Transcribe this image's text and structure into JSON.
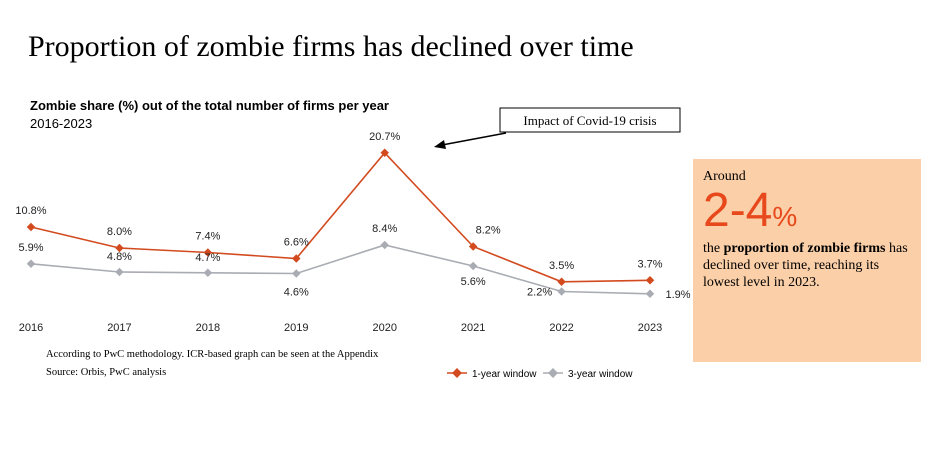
{
  "headline": "Proportion of zombie firms has declined over time",
  "callout": {
    "around": "Around",
    "big_number": "2-4",
    "big_unit": "%",
    "desc_prefix": "the ",
    "desc_bold": "proportion of zombie firms",
    "desc_suffix": " has declined over time, reaching its lowest level in 2023."
  },
  "notes": {
    "methodology": "According to PwC methodology. ICR-based graph can be seen at the Appendix",
    "source": "Source: Orbis, PwC analysis"
  },
  "colors": {
    "one_year": "#d24a1e",
    "three_year": "#a9acb3",
    "panel_bg": "#fbcfa8",
    "big_number": "#e8491c"
  },
  "chart_data": {
    "type": "line",
    "title": "Zombie share (%) out of the total number of firms per year",
    "subtitle": "2016-2023",
    "x": [
      "2016",
      "2017",
      "2018",
      "2019",
      "2020",
      "2021",
      "2022",
      "2023"
    ],
    "ylim": [
      0,
      22
    ],
    "grid": false,
    "legend": "bottom-right",
    "series": [
      {
        "name": "1-year window",
        "color": "#d24a1e",
        "values": [
          10.8,
          8.0,
          7.4,
          6.6,
          20.7,
          8.2,
          3.5,
          3.7
        ],
        "labels": [
          "10.8%",
          "8.0%",
          "7.4%",
          "6.6%",
          "20.7%",
          "8.2%",
          "3.5%",
          "3.7%"
        ]
      },
      {
        "name": "3-year window",
        "color": "#a9acb3",
        "values": [
          5.9,
          4.8,
          4.7,
          4.6,
          8.4,
          5.6,
          2.2,
          1.9
        ],
        "labels": [
          "5.9%",
          "4.8%",
          "4.7%",
          "4.6%",
          "8.4%",
          "5.6%",
          "2.2%",
          "1.9%"
        ]
      }
    ],
    "annotations": [
      {
        "text": "Impact of Covid-19 crisis",
        "points_to": "2020"
      }
    ]
  }
}
